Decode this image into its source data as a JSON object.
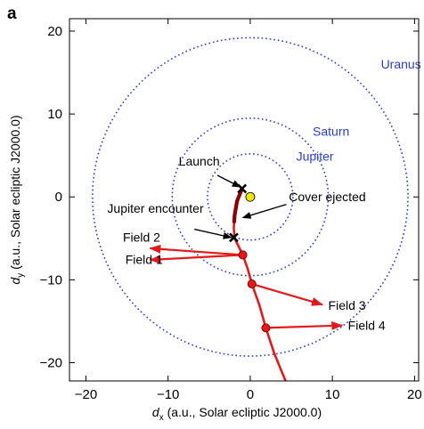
{
  "panel_label": "a",
  "chart_data": {
    "type": "scatter",
    "xlabel_main": "d",
    "xlabel_sub": "x",
    "xlabel_rest": " (a.u., Solar ecliptic J2000.0)",
    "ylabel_main": "d",
    "ylabel_sub": "y",
    "ylabel_rest": " (a.u., Solar ecliptic J2000.0)",
    "xlim": [
      -22,
      20.5
    ],
    "ylim": [
      -22.2,
      21.5
    ],
    "xticks": [
      -20,
      -10,
      0,
      10,
      20
    ],
    "yticks": [
      -20,
      -10,
      0,
      10,
      20
    ],
    "grid": false,
    "sun": {
      "x": 0,
      "y": 0,
      "color": "#f2e600"
    },
    "orbits": [
      {
        "name": "Jupiter",
        "radius": 5.2,
        "label": "Jupiter",
        "label_x": 5.6,
        "label_y": 4.4
      },
      {
        "name": "Saturn",
        "radius": 9.5,
        "label": "Saturn",
        "label_x": 7.6,
        "label_y": 7.4
      },
      {
        "name": "Uranus",
        "radius": 19.2,
        "label": "Uranus",
        "label_x": 15.9,
        "label_y": 15.5
      }
    ],
    "orbit_color": "#2a3fd1",
    "trajectory": {
      "color": "#e31a1c",
      "points": [
        [
          -1.0,
          1.0
        ],
        [
          -1.6,
          -0.5
        ],
        [
          -1.9,
          -2.2
        ],
        [
          -2.0,
          -3.8
        ],
        [
          -1.9,
          -5.0
        ],
        [
          -1.3,
          -6.2
        ],
        [
          -0.9,
          -7.0
        ],
        [
          -0.3,
          -8.7
        ],
        [
          0.2,
          -10.5
        ],
        [
          1.1,
          -13.0
        ],
        [
          1.9,
          -15.8
        ],
        [
          2.9,
          -18.8
        ],
        [
          4.3,
          -22.2
        ]
      ],
      "cruise_segment": [
        [
          -1.0,
          1.0
        ],
        [
          -1.6,
          -0.5
        ],
        [
          -1.9,
          -2.2
        ],
        [
          -1.95,
          -3.0
        ]
      ],
      "cruise_color": "#8b0000"
    },
    "markers": [
      {
        "name": "Launch",
        "x": -1.0,
        "y": 1.0,
        "symbol": "cross"
      },
      {
        "name": "Jupiter encounter",
        "x": -2.0,
        "y": -4.9,
        "symbol": "cross"
      }
    ],
    "fields": [
      {
        "name": "Field 1",
        "x0": -0.9,
        "y0": -7.0,
        "x1": -12.2,
        "y1": -7.6
      },
      {
        "name": "Field 2",
        "x0": -0.9,
        "y0": -7.0,
        "x1": -12.2,
        "y1": -6.2
      },
      {
        "name": "Field 3",
        "x0": 0.2,
        "y0": -10.5,
        "x1": 8.8,
        "y1": -13.0
      },
      {
        "name": "Field 4",
        "x0": 1.9,
        "y0": -15.8,
        "x1": 11.2,
        "y1": -15.5
      }
    ],
    "field_labels": [
      {
        "text": "Field 2",
        "x": -15.5,
        "y": -5.4
      },
      {
        "text": "Field 1",
        "x": -15.2,
        "y": -8.1
      },
      {
        "text": "Field 3",
        "x": 9.5,
        "y": -13.6
      },
      {
        "text": "Field 4",
        "x": 11.9,
        "y": -16.0
      }
    ],
    "annotations": [
      {
        "text": "Launch",
        "tx": -8.7,
        "ty": 3.8,
        "ax0": -4.0,
        "ay0": 2.6,
        "ax1": -1.2,
        "ay1": 1.2
      },
      {
        "text": "Cover ejected",
        "tx": 4.7,
        "ty": -0.5,
        "ax0": 4.4,
        "ay0": -0.9,
        "ax1": -0.9,
        "ay1": -2.5
      },
      {
        "text": "Jupiter encounter",
        "tx": -17.4,
        "ty": -1.9,
        "ax0": -6.8,
        "ay0": -3.9,
        "ax1": -2.3,
        "ay1": -4.9
      }
    ]
  }
}
